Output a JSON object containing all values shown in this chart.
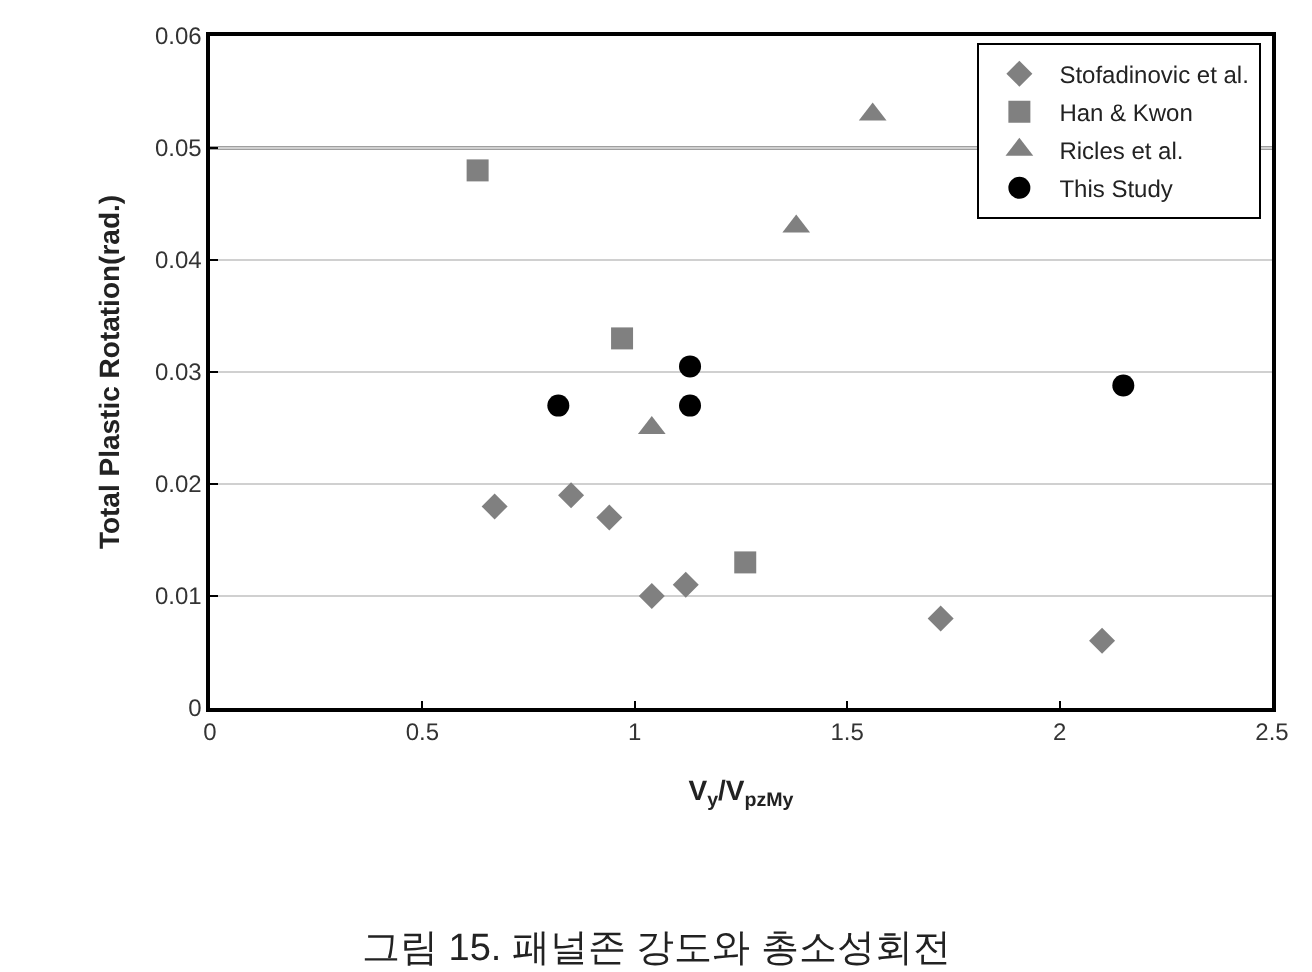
{
  "chart_data": {
    "type": "scatter",
    "xlabel": "V$_{y}$/V$_{pzMy}$",
    "ylabel": "Total Plastic Rotation(rad.)",
    "annotations": [
      "그림 15. 패널존 강도와 총소성회전"
    ],
    "xlim": [
      0,
      2.5
    ],
    "xticks": [
      0,
      0.5,
      1,
      1.5,
      2,
      2.5
    ],
    "ylim": [
      0,
      0.06
    ],
    "yticks": [
      0,
      0.01,
      0.02,
      0.03,
      0.04,
      0.05,
      0.06
    ],
    "grid": "y",
    "legend": "top right",
    "ref_lines": [
      {
        "axis": "y",
        "value": 0.05,
        "color": "#404040"
      }
    ],
    "series": [
      {
        "name": "Stofadinovic et al.",
        "color": "#808080",
        "marker": "diamond",
        "x": [
          0.67,
          0.85,
          0.94,
          1.04,
          1.12,
          1.72,
          2.1
        ],
        "values": [
          0.018,
          0.019,
          0.017,
          0.01,
          0.011,
          0.008,
          0.006
        ]
      },
      {
        "name": "Han & Kwon",
        "color": "#808080",
        "marker": "square",
        "x": [
          0.63,
          0.97,
          1.26
        ],
        "values": [
          0.048,
          0.033,
          0.013
        ]
      },
      {
        "name": "Ricles et al.",
        "color": "#808080",
        "marker": "triangle",
        "x": [
          1.04,
          1.38,
          1.56
        ],
        "values": [
          0.025,
          0.043,
          0.053
        ]
      },
      {
        "name": "This Study",
        "color": "#000000",
        "marker": "circle",
        "x": [
          0.82,
          1.13,
          1.13,
          2.15
        ],
        "values": [
          0.027,
          0.0305,
          0.027,
          0.0288
        ]
      }
    ]
  }
}
